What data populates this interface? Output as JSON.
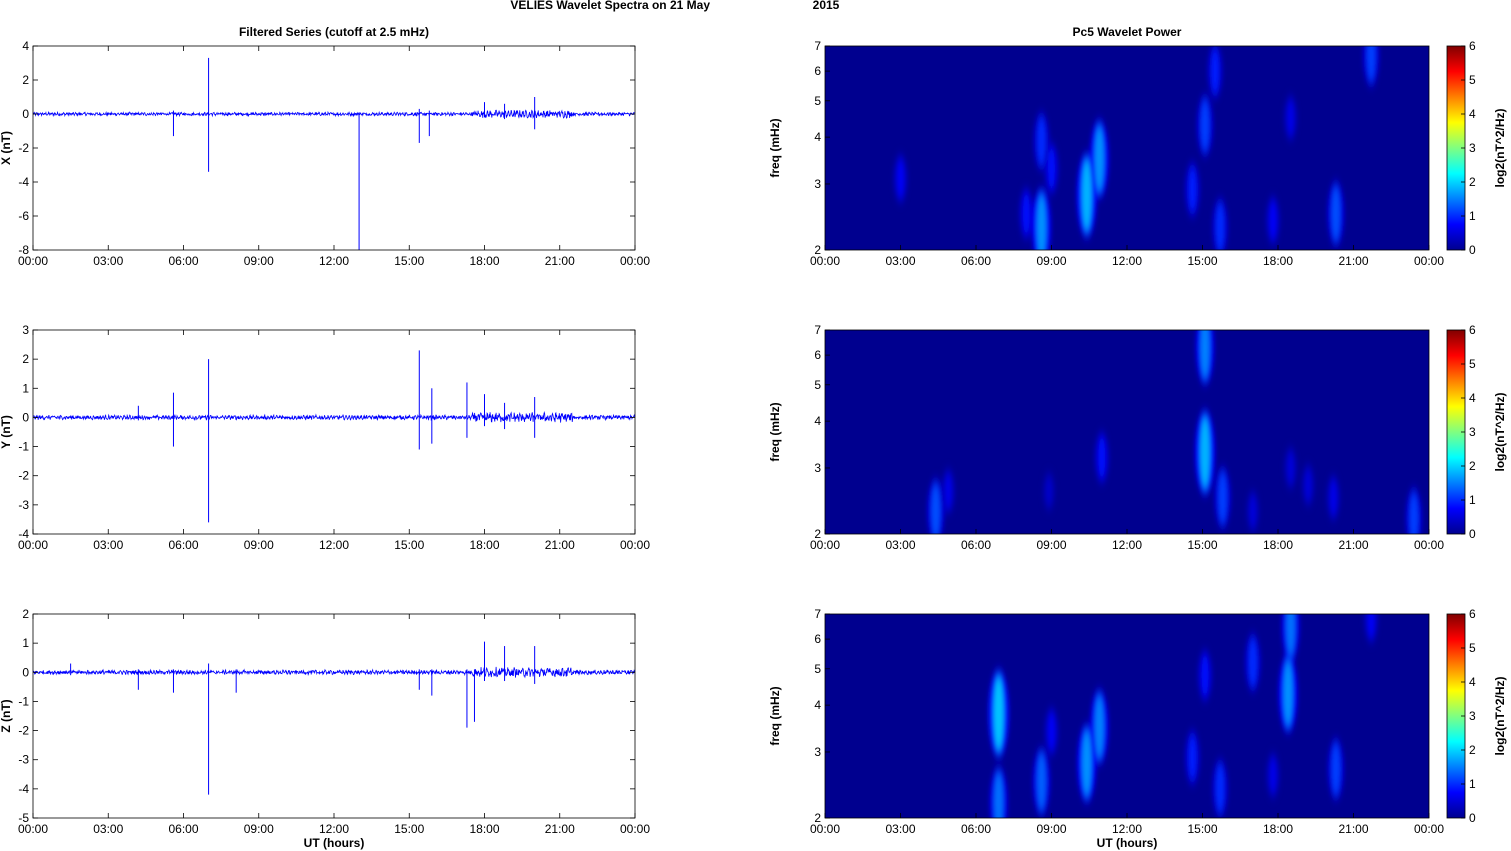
{
  "figure": {
    "title_part1": "VELIES Wavelet Spectra on 21 May",
    "title_part2": "2015"
  },
  "left_title": "Filtered Series (cutoff at 2.5 mHz)",
  "right_title": "Pc5 Wavelet Power",
  "xlabel": "UT (hours)",
  "x_ticks": [
    "00:00",
    "03:00",
    "06:00",
    "09:00",
    "12:00",
    "15:00",
    "18:00",
    "21:00",
    "00:00"
  ],
  "colorbar": {
    "label": "log2(nT^2/Hz)",
    "ticks": [
      "0",
      "1",
      "2",
      "3",
      "4",
      "5",
      "6"
    ],
    "colors": [
      "#00008f",
      "#0000ff",
      "#0080ff",
      "#00ffff",
      "#80ff80",
      "#ffff00",
      "#ff8000",
      "#ff0000",
      "#800000"
    ]
  },
  "colors": {
    "trace": "#0000ff",
    "spectrum_background": "#00008f"
  },
  "chart_data": [
    {
      "type": "line",
      "panel": "X",
      "ylabel": "X (nT)",
      "xlim": [
        0,
        24
      ],
      "ylim": [
        -8,
        4
      ],
      "yticks": [
        "4",
        "2",
        "0",
        "-2",
        "-4",
        "-6",
        "-8"
      ],
      "noise_amp": 0.08,
      "spikes": [
        {
          "t": 5.6,
          "lo": -1.3,
          "hi": 0.2
        },
        {
          "t": 7.0,
          "lo": -3.4,
          "hi": 3.3
        },
        {
          "t": 13.0,
          "lo": -8.0,
          "hi": 0.1
        },
        {
          "t": 15.4,
          "lo": -1.7,
          "hi": 0.3
        },
        {
          "t": 15.8,
          "lo": -1.3,
          "hi": 0.2
        },
        {
          "t": 18.0,
          "lo": -0.2,
          "hi": 0.7
        },
        {
          "t": 18.8,
          "lo": -0.3,
          "hi": 0.6
        },
        {
          "t": 20.0,
          "lo": -0.9,
          "hi": 1.0
        }
      ]
    },
    {
      "type": "line",
      "panel": "Y",
      "ylabel": "Y (nT)",
      "xlim": [
        0,
        24
      ],
      "ylim": [
        -4,
        3
      ],
      "yticks": [
        "3",
        "2",
        "1",
        "0",
        "-1",
        "-2",
        "-3",
        "-4"
      ],
      "noise_amp": 0.06,
      "spikes": [
        {
          "t": 4.2,
          "lo": -0.1,
          "hi": 0.4
        },
        {
          "t": 5.6,
          "lo": -1.0,
          "hi": 0.85
        },
        {
          "t": 7.0,
          "lo": -3.6,
          "hi": 2.0
        },
        {
          "t": 15.4,
          "lo": -1.1,
          "hi": 2.3
        },
        {
          "t": 15.9,
          "lo": -0.9,
          "hi": 1.0
        },
        {
          "t": 17.3,
          "lo": -0.7,
          "hi": 1.2
        },
        {
          "t": 18.0,
          "lo": -0.3,
          "hi": 0.8
        },
        {
          "t": 18.8,
          "lo": -0.4,
          "hi": 0.5
        },
        {
          "t": 20.0,
          "lo": -0.7,
          "hi": 0.7
        }
      ]
    },
    {
      "type": "line",
      "panel": "Z",
      "ylabel": "Z (nT)",
      "xlim": [
        0,
        24
      ],
      "ylim": [
        -5,
        2
      ],
      "yticks": [
        "2",
        "1",
        "0",
        "-1",
        "-2",
        "-3",
        "-4",
        "-5"
      ],
      "noise_amp": 0.06,
      "spikes": [
        {
          "t": 1.5,
          "lo": -0.1,
          "hi": 0.3
        },
        {
          "t": 4.2,
          "lo": -0.6,
          "hi": 0.1
        },
        {
          "t": 5.6,
          "lo": -0.7,
          "hi": 0.1
        },
        {
          "t": 7.0,
          "lo": -4.2,
          "hi": 0.3
        },
        {
          "t": 8.1,
          "lo": -0.7,
          "hi": 0.1
        },
        {
          "t": 15.4,
          "lo": -0.6,
          "hi": 0.1
        },
        {
          "t": 15.9,
          "lo": -0.8,
          "hi": 0.1
        },
        {
          "t": 17.3,
          "lo": -1.9,
          "hi": 0.1
        },
        {
          "t": 17.6,
          "lo": -1.7,
          "hi": 0.1
        },
        {
          "t": 18.0,
          "lo": -0.3,
          "hi": 1.05
        },
        {
          "t": 18.8,
          "lo": -0.3,
          "hi": 0.9
        },
        {
          "t": 20.0,
          "lo": -0.4,
          "hi": 0.9
        }
      ]
    },
    {
      "type": "heatmap",
      "panel": "X",
      "ylabel": "freq (mHz)",
      "xlim": [
        0,
        24
      ],
      "ylim": [
        2,
        7
      ],
      "yscale": "log",
      "yticks": [
        "7",
        "6",
        "5",
        "4",
        "3",
        "2"
      ],
      "clim": [
        0,
        6
      ],
      "blobs": [
        {
          "t": 3.0,
          "f": 3.1,
          "p": 0.7
        },
        {
          "t": 8.0,
          "f": 2.5,
          "p": 0.8
        },
        {
          "t": 8.6,
          "f": 2.3,
          "p": 1.6
        },
        {
          "t": 8.6,
          "f": 3.9,
          "p": 1.0
        },
        {
          "t": 9.0,
          "f": 3.3,
          "p": 0.8
        },
        {
          "t": 10.4,
          "f": 2.8,
          "p": 1.8
        },
        {
          "t": 10.9,
          "f": 3.5,
          "p": 1.6
        },
        {
          "t": 14.6,
          "f": 2.9,
          "p": 0.9
        },
        {
          "t": 15.1,
          "f": 4.3,
          "p": 1.1
        },
        {
          "t": 15.5,
          "f": 6.0,
          "p": 0.9
        },
        {
          "t": 15.7,
          "f": 2.3,
          "p": 1.0
        },
        {
          "t": 17.8,
          "f": 2.4,
          "p": 0.7
        },
        {
          "t": 18.5,
          "f": 4.5,
          "p": 0.6
        },
        {
          "t": 20.3,
          "f": 2.5,
          "p": 1.2
        },
        {
          "t": 21.7,
          "f": 6.6,
          "p": 1.1
        }
      ]
    },
    {
      "type": "heatmap",
      "panel": "Y",
      "ylabel": "freq (mHz)",
      "xlim": [
        0,
        24
      ],
      "ylim": [
        2,
        7
      ],
      "yscale": "log",
      "yticks": [
        "7",
        "6",
        "5",
        "4",
        "3",
        "2"
      ],
      "clim": [
        0,
        6
      ],
      "blobs": [
        {
          "t": 4.4,
          "f": 2.3,
          "p": 1.2
        },
        {
          "t": 4.9,
          "f": 2.6,
          "p": 0.6
        },
        {
          "t": 8.9,
          "f": 2.6,
          "p": 0.4
        },
        {
          "t": 11.0,
          "f": 3.2,
          "p": 0.8
        },
        {
          "t": 15.1,
          "f": 3.3,
          "p": 1.8
        },
        {
          "t": 15.1,
          "f": 6.3,
          "p": 1.5
        },
        {
          "t": 15.8,
          "f": 2.5,
          "p": 1.1
        },
        {
          "t": 17.0,
          "f": 2.3,
          "p": 0.5
        },
        {
          "t": 18.5,
          "f": 3.0,
          "p": 0.5
        },
        {
          "t": 19.2,
          "f": 2.7,
          "p": 0.5
        },
        {
          "t": 20.2,
          "f": 2.5,
          "p": 0.6
        },
        {
          "t": 23.4,
          "f": 2.2,
          "p": 1.1
        }
      ]
    },
    {
      "type": "heatmap",
      "panel": "Z",
      "ylabel": "freq (mHz)",
      "xlim": [
        0,
        24
      ],
      "ylim": [
        2,
        7
      ],
      "yscale": "log",
      "yticks": [
        "7",
        "6",
        "5",
        "4",
        "3",
        "2"
      ],
      "clim": [
        0,
        6
      ],
      "blobs": [
        {
          "t": 6.9,
          "f": 3.8,
          "p": 1.9
        },
        {
          "t": 6.9,
          "f": 2.2,
          "p": 1.4
        },
        {
          "t": 8.6,
          "f": 2.5,
          "p": 1.3
        },
        {
          "t": 9.0,
          "f": 3.4,
          "p": 0.7
        },
        {
          "t": 10.4,
          "f": 2.8,
          "p": 1.6
        },
        {
          "t": 10.9,
          "f": 3.5,
          "p": 1.5
        },
        {
          "t": 14.6,
          "f": 2.9,
          "p": 0.9
        },
        {
          "t": 15.1,
          "f": 4.8,
          "p": 0.8
        },
        {
          "t": 15.7,
          "f": 2.4,
          "p": 1.0
        },
        {
          "t": 17.0,
          "f": 5.2,
          "p": 1.0
        },
        {
          "t": 17.8,
          "f": 2.6,
          "p": 0.6
        },
        {
          "t": 18.4,
          "f": 4.3,
          "p": 1.6
        },
        {
          "t": 18.5,
          "f": 6.5,
          "p": 1.4
        },
        {
          "t": 20.3,
          "f": 2.7,
          "p": 1.1
        },
        {
          "t": 21.7,
          "f": 6.8,
          "p": 0.7
        }
      ]
    }
  ]
}
